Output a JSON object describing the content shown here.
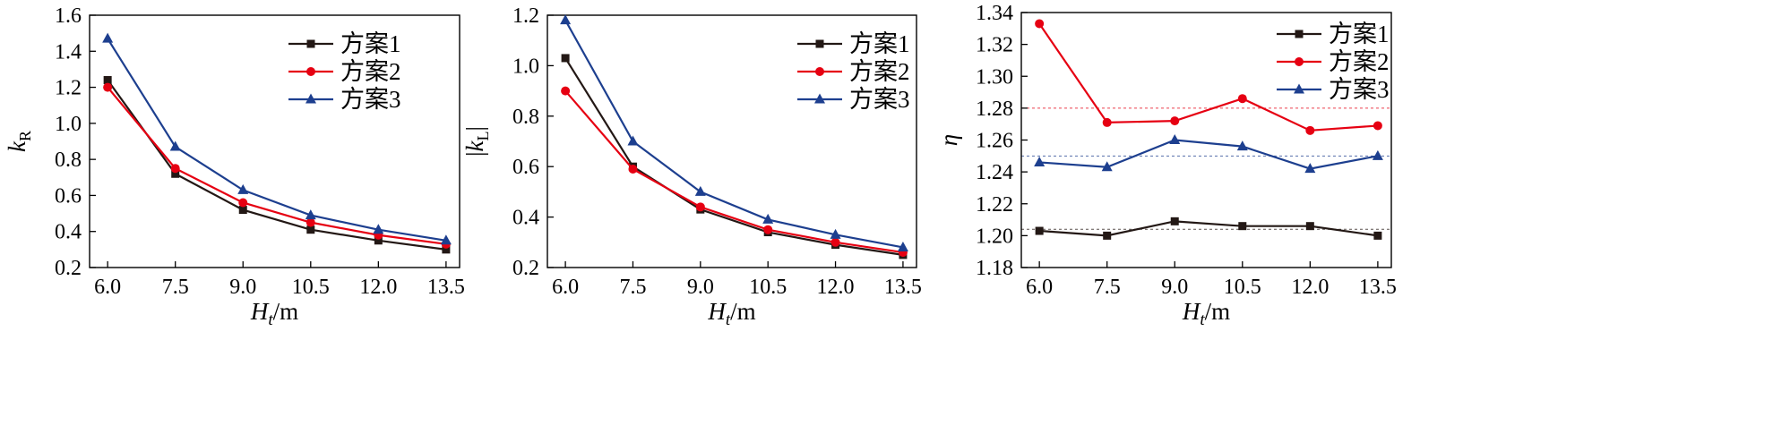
{
  "figure": {
    "panels": [
      {
        "ylabel_main": "k",
        "ylabel_sub": "R",
        "ylabel_style": "plain",
        "xlabel_main": "H",
        "xlabel_sub": "t",
        "xlabel_unit": "/m"
      },
      {
        "ylabel_main": "k",
        "ylabel_sub": "L",
        "ylabel_style": "abs",
        "xlabel_main": "H",
        "xlabel_sub": "t",
        "xlabel_unit": "/m"
      },
      {
        "ylabel_main": "η",
        "ylabel_sub": "",
        "ylabel_style": "greek",
        "xlabel_main": "H",
        "xlabel_sub": "t",
        "xlabel_unit": "/m"
      }
    ]
  },
  "chart_data": [
    {
      "type": "line",
      "x": [
        6.0,
        7.5,
        9.0,
        10.5,
        12.0,
        13.5
      ],
      "x_tick_labels": [
        "6.0",
        "7.5",
        "9.0",
        "10.5",
        "12.0",
        "13.5"
      ],
      "xlim": [
        5.6,
        13.8
      ],
      "ylim": [
        0.2,
        1.6
      ],
      "y_ticks": [
        0.2,
        0.4,
        0.6,
        0.8,
        1.0,
        1.2,
        1.4,
        1.6
      ],
      "y_tick_labels": [
        "0.2",
        "0.4",
        "0.6",
        "0.8",
        "1.0",
        "1.2",
        "1.4",
        "1.6"
      ],
      "legend_position": "top-right",
      "series": [
        {
          "name": "方案1",
          "color": "#231815",
          "marker": "square",
          "values": [
            1.24,
            0.72,
            0.52,
            0.41,
            0.35,
            0.3
          ]
        },
        {
          "name": "方案2",
          "color": "#e60012",
          "marker": "circle",
          "values": [
            1.2,
            0.75,
            0.56,
            0.45,
            0.38,
            0.33
          ]
        },
        {
          "name": "方案3",
          "color": "#1d3f8f",
          "marker": "triangle",
          "values": [
            1.47,
            0.87,
            0.63,
            0.49,
            0.41,
            0.35
          ]
        }
      ]
    },
    {
      "type": "line",
      "x": [
        6.0,
        7.5,
        9.0,
        10.5,
        12.0,
        13.5
      ],
      "x_tick_labels": [
        "6.0",
        "7.5",
        "9.0",
        "10.5",
        "12.0",
        "13.5"
      ],
      "xlim": [
        5.6,
        13.8
      ],
      "ylim": [
        0.2,
        1.2
      ],
      "y_ticks": [
        0.2,
        0.4,
        0.6,
        0.8,
        1.0,
        1.2
      ],
      "y_tick_labels": [
        "0.2",
        "0.4",
        "0.6",
        "0.8",
        "1.0",
        "1.2"
      ],
      "legend_position": "top-right",
      "series": [
        {
          "name": "方案1",
          "color": "#231815",
          "marker": "square",
          "values": [
            1.03,
            0.6,
            0.43,
            0.34,
            0.29,
            0.25
          ]
        },
        {
          "name": "方案2",
          "color": "#e60012",
          "marker": "circle",
          "values": [
            0.9,
            0.59,
            0.44,
            0.35,
            0.3,
            0.26
          ]
        },
        {
          "name": "方案3",
          "color": "#1d3f8f",
          "marker": "triangle",
          "values": [
            1.18,
            0.7,
            0.5,
            0.39,
            0.33,
            0.28
          ]
        }
      ]
    },
    {
      "type": "line",
      "x": [
        6.0,
        7.5,
        9.0,
        10.5,
        12.0,
        13.5
      ],
      "x_tick_labels": [
        "6.0",
        "7.5",
        "9.0",
        "10.5",
        "12.0",
        "13.5"
      ],
      "xlim": [
        5.6,
        13.8
      ],
      "ylim": [
        1.18,
        1.34
      ],
      "y_ticks": [
        1.18,
        1.2,
        1.22,
        1.24,
        1.26,
        1.28,
        1.3,
        1.32,
        1.34
      ],
      "y_tick_labels": [
        "1.18",
        "1.20",
        "1.22",
        "1.24",
        "1.26",
        "1.28",
        "1.30",
        "1.32",
        "1.34"
      ],
      "legend_position": "top-right",
      "reference_lines": [
        {
          "y": 1.204,
          "color": "#231815"
        },
        {
          "y": 1.28,
          "color": "#e60012"
        },
        {
          "y": 1.25,
          "color": "#1d3f8f"
        }
      ],
      "series": [
        {
          "name": "方案1",
          "color": "#231815",
          "marker": "square",
          "values": [
            1.203,
            1.2,
            1.209,
            1.206,
            1.206,
            1.2
          ]
        },
        {
          "name": "方案2",
          "color": "#e60012",
          "marker": "circle",
          "values": [
            1.333,
            1.271,
            1.272,
            1.286,
            1.266,
            1.269
          ]
        },
        {
          "name": "方案3",
          "color": "#1d3f8f",
          "marker": "triangle",
          "values": [
            1.246,
            1.243,
            1.26,
            1.256,
            1.242,
            1.25
          ]
        }
      ]
    }
  ]
}
